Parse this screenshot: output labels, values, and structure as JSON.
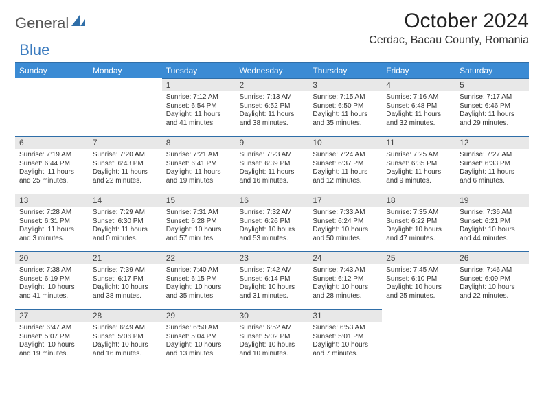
{
  "brand": {
    "part1": "General",
    "part2": "Blue",
    "part1_color": "#555555",
    "part2_color": "#3b7bbf",
    "shape_color": "#2f6ea8"
  },
  "title": "October 2024",
  "location": "Cerdac, Bacau County, Romania",
  "colors": {
    "header_bg": "#3b8bd4",
    "header_fg": "#ffffff",
    "daynum_bg": "#e8e8e8",
    "rule": "#2f6ea8",
    "text": "#333333",
    "background": "#ffffff"
  },
  "typography": {
    "title_fontsize": 30,
    "location_fontsize": 16,
    "dayheader_fontsize": 12,
    "daynum_fontsize": 12,
    "body_fontsize": 10
  },
  "day_headers": [
    "Sunday",
    "Monday",
    "Tuesday",
    "Wednesday",
    "Thursday",
    "Friday",
    "Saturday"
  ],
  "weeks": [
    [
      null,
      null,
      {
        "n": "1",
        "sunrise": "7:12 AM",
        "sunset": "6:54 PM",
        "daylight": "11 hours and 41 minutes."
      },
      {
        "n": "2",
        "sunrise": "7:13 AM",
        "sunset": "6:52 PM",
        "daylight": "11 hours and 38 minutes."
      },
      {
        "n": "3",
        "sunrise": "7:15 AM",
        "sunset": "6:50 PM",
        "daylight": "11 hours and 35 minutes."
      },
      {
        "n": "4",
        "sunrise": "7:16 AM",
        "sunset": "6:48 PM",
        "daylight": "11 hours and 32 minutes."
      },
      {
        "n": "5",
        "sunrise": "7:17 AM",
        "sunset": "6:46 PM",
        "daylight": "11 hours and 29 minutes."
      }
    ],
    [
      {
        "n": "6",
        "sunrise": "7:19 AM",
        "sunset": "6:44 PM",
        "daylight": "11 hours and 25 minutes."
      },
      {
        "n": "7",
        "sunrise": "7:20 AM",
        "sunset": "6:43 PM",
        "daylight": "11 hours and 22 minutes."
      },
      {
        "n": "8",
        "sunrise": "7:21 AM",
        "sunset": "6:41 PM",
        "daylight": "11 hours and 19 minutes."
      },
      {
        "n": "9",
        "sunrise": "7:23 AM",
        "sunset": "6:39 PM",
        "daylight": "11 hours and 16 minutes."
      },
      {
        "n": "10",
        "sunrise": "7:24 AM",
        "sunset": "6:37 PM",
        "daylight": "11 hours and 12 minutes."
      },
      {
        "n": "11",
        "sunrise": "7:25 AM",
        "sunset": "6:35 PM",
        "daylight": "11 hours and 9 minutes."
      },
      {
        "n": "12",
        "sunrise": "7:27 AM",
        "sunset": "6:33 PM",
        "daylight": "11 hours and 6 minutes."
      }
    ],
    [
      {
        "n": "13",
        "sunrise": "7:28 AM",
        "sunset": "6:31 PM",
        "daylight": "11 hours and 3 minutes."
      },
      {
        "n": "14",
        "sunrise": "7:29 AM",
        "sunset": "6:30 PM",
        "daylight": "11 hours and 0 minutes."
      },
      {
        "n": "15",
        "sunrise": "7:31 AM",
        "sunset": "6:28 PM",
        "daylight": "10 hours and 57 minutes."
      },
      {
        "n": "16",
        "sunrise": "7:32 AM",
        "sunset": "6:26 PM",
        "daylight": "10 hours and 53 minutes."
      },
      {
        "n": "17",
        "sunrise": "7:33 AM",
        "sunset": "6:24 PM",
        "daylight": "10 hours and 50 minutes."
      },
      {
        "n": "18",
        "sunrise": "7:35 AM",
        "sunset": "6:22 PM",
        "daylight": "10 hours and 47 minutes."
      },
      {
        "n": "19",
        "sunrise": "7:36 AM",
        "sunset": "6:21 PM",
        "daylight": "10 hours and 44 minutes."
      }
    ],
    [
      {
        "n": "20",
        "sunrise": "7:38 AM",
        "sunset": "6:19 PM",
        "daylight": "10 hours and 41 minutes."
      },
      {
        "n": "21",
        "sunrise": "7:39 AM",
        "sunset": "6:17 PM",
        "daylight": "10 hours and 38 minutes."
      },
      {
        "n": "22",
        "sunrise": "7:40 AM",
        "sunset": "6:15 PM",
        "daylight": "10 hours and 35 minutes."
      },
      {
        "n": "23",
        "sunrise": "7:42 AM",
        "sunset": "6:14 PM",
        "daylight": "10 hours and 31 minutes."
      },
      {
        "n": "24",
        "sunrise": "7:43 AM",
        "sunset": "6:12 PM",
        "daylight": "10 hours and 28 minutes."
      },
      {
        "n": "25",
        "sunrise": "7:45 AM",
        "sunset": "6:10 PM",
        "daylight": "10 hours and 25 minutes."
      },
      {
        "n": "26",
        "sunrise": "7:46 AM",
        "sunset": "6:09 PM",
        "daylight": "10 hours and 22 minutes."
      }
    ],
    [
      {
        "n": "27",
        "sunrise": "6:47 AM",
        "sunset": "5:07 PM",
        "daylight": "10 hours and 19 minutes."
      },
      {
        "n": "28",
        "sunrise": "6:49 AM",
        "sunset": "5:06 PM",
        "daylight": "10 hours and 16 minutes."
      },
      {
        "n": "29",
        "sunrise": "6:50 AM",
        "sunset": "5:04 PM",
        "daylight": "10 hours and 13 minutes."
      },
      {
        "n": "30",
        "sunrise": "6:52 AM",
        "sunset": "5:02 PM",
        "daylight": "10 hours and 10 minutes."
      },
      {
        "n": "31",
        "sunrise": "6:53 AM",
        "sunset": "5:01 PM",
        "daylight": "10 hours and 7 minutes."
      },
      null,
      null
    ]
  ],
  "labels": {
    "sunrise": "Sunrise:",
    "sunset": "Sunset:",
    "daylight": "Daylight:"
  }
}
